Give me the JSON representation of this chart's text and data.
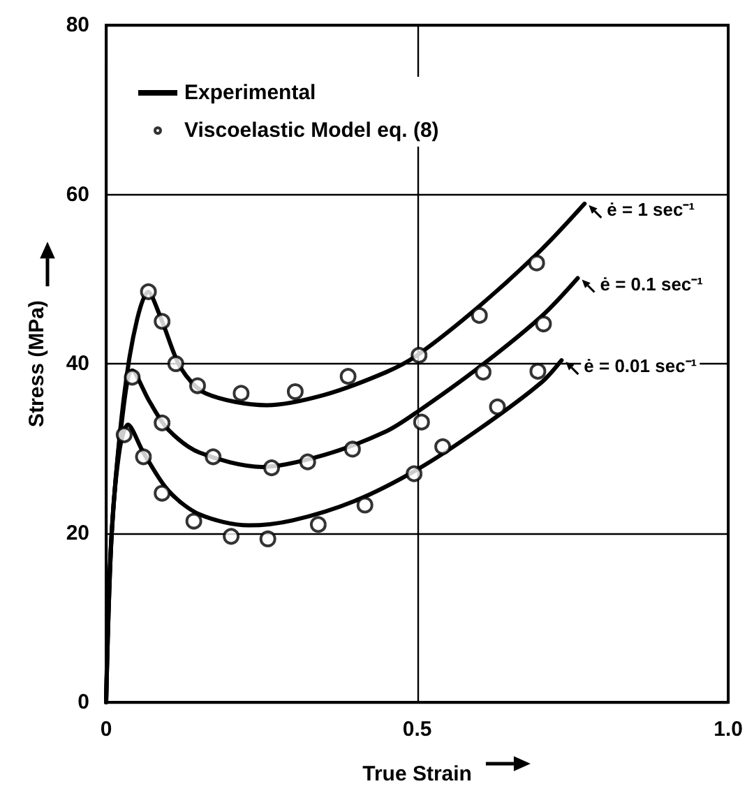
{
  "chart_data": {
    "type": "line",
    "xlabel": "True Strain",
    "ylabel": "Stress (MPa)",
    "xlim": [
      0,
      1
    ],
    "xticks": [
      0,
      0.5,
      {
        "value": 1,
        "label": "1.0"
      }
    ],
    "ylim": [
      0,
      80
    ],
    "yticks": [
      0,
      20,
      40,
      60,
      80
    ],
    "grid": true,
    "legend": "top left",
    "line_style": "solid",
    "series": [
      {
        "name": "Experimental",
        "marker": "none",
        "color": "#000000",
        "x": [
          0,
          0.009,
          0.036,
          0.068,
          0.09,
          0.12,
          0.16,
          0.258,
          0.35,
          0.45,
          0.5,
          0.6,
          0.7,
          0.769
        ],
        "values": [
          0,
          20,
          40,
          48.5,
          45,
          39.5,
          36.5,
          35.1,
          36.3,
          39,
          41,
          46.8,
          53.5,
          58.9
        ]
      },
      {
        "marker": "none",
        "color": "#000000",
        "x": [
          0,
          0.009,
          0.025,
          0.042,
          0.07,
          0.1,
          0.15,
          0.251,
          0.35,
          0.45,
          0.5,
          0.6,
          0.7,
          0.758
        ],
        "values": [
          0,
          20,
          33,
          39.2,
          35.5,
          32.2,
          29.5,
          27.8,
          29.2,
          32,
          34.3,
          39.6,
          45.6,
          50.1
        ]
      },
      {
        "marker": "none",
        "color": "#000000",
        "x": [
          0,
          0.009,
          0.022,
          0.035,
          0.06,
          0.1,
          0.15,
          0.229,
          0.3,
          0.4,
          0.5,
          0.6,
          0.7,
          0.732
        ],
        "values": [
          0,
          20,
          30,
          32.8,
          29.5,
          25,
          22.2,
          20.9,
          21.5,
          23.8,
          27.5,
          32.3,
          37.8,
          40.4
        ]
      },
      {
        "name": "Viscoelastic Model eq. (8)",
        "type": "scatter",
        "marker": "circle",
        "color": "#000000",
        "x": [
          0.068,
          0.09,
          0.112,
          0.147,
          0.217,
          0.304,
          0.389,
          0.503,
          0.6,
          0.692,
          0.042,
          0.09,
          0.172,
          0.266,
          0.324,
          0.396,
          0.507,
          0.606,
          0.703,
          0.029,
          0.06,
          0.09,
          0.141,
          0.201,
          0.26,
          0.341,
          0.416,
          0.495,
          0.541,
          0.629,
          0.694
        ],
        "values": [
          48.5,
          45,
          40,
          37.4,
          36.5,
          36.7,
          38.5,
          41,
          45.7,
          51.9,
          38.4,
          33,
          29,
          27.7,
          28.4,
          29.9,
          33.1,
          39,
          44.7,
          31.6,
          29,
          24.7,
          21.4,
          19.6,
          19.3,
          21,
          23.3,
          27,
          30.2,
          34.9,
          39.1
        ]
      }
    ],
    "annotations": [
      {
        "text": "ė = 1 sec⁻¹",
        "x": 0.769,
        "y": 58.9
      },
      {
        "text": "ė = 0.1 sec⁻¹",
        "x": 0.758,
        "y": 50.1
      },
      {
        "text": "ė = 0.01 sec⁻¹",
        "x": 0.732,
        "y": 40.4
      }
    ]
  }
}
